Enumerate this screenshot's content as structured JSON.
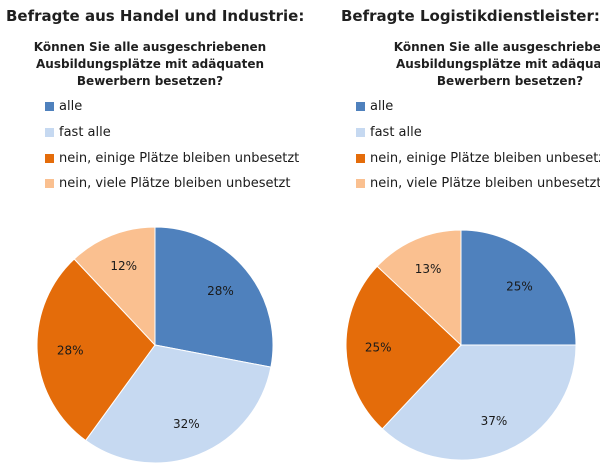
{
  "colors": {
    "alle": "#4f81bd",
    "fast_alle": "#c6d9f1",
    "nein_einige": "#e46c0a",
    "nein_viele": "#fac090"
  },
  "chart_data": [
    {
      "type": "pie",
      "title": "Befragte aus Handel und Industrie:",
      "subtitle_lines": [
        "Können Sie alle ausgeschriebenen",
        "Ausbildungsplätze mit adäquaten",
        "Bewerbern besetzen?"
      ],
      "categories": [
        "alle",
        "fast alle",
        "nein, einige Plätze bleiben unbesetzt",
        "nein, viele Plätze bleiben unbesetzt"
      ],
      "values": [
        28,
        32,
        28,
        12
      ],
      "data_labels": [
        "28%",
        "32%",
        "28%",
        "12%"
      ],
      "legend_placement": "top"
    },
    {
      "type": "pie",
      "title": "Befragte Logistikdienstleister:",
      "subtitle_lines": [
        "Können Sie alle ausgeschriebenen",
        "Ausbildungsplätze mit adäquaten",
        "Bewerbern besetzen?"
      ],
      "categories": [
        "alle",
        "fast alle",
        "nein, einige Plätze bleiben unbesetzt",
        "nein, viele Plätze bleiben unbesetzt"
      ],
      "values": [
        25,
        37,
        25,
        13
      ],
      "data_labels": [
        "25%",
        "37%",
        "25%",
        "13%"
      ],
      "legend_placement": "top"
    }
  ]
}
